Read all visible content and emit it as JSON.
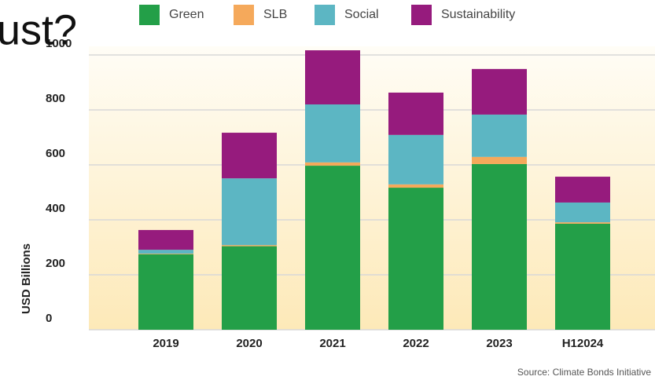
{
  "chart_data": {
    "type": "stacked_bar",
    "overlay_text": "ust?",
    "y_label": "USD Billions",
    "source": "Source: Climate Bonds Initiative",
    "categories": [
      "2019",
      "2020",
      "2021",
      "2022",
      "2023",
      "H12024"
    ],
    "series": [
      {
        "name": "Green",
        "color": "#239f48",
        "values": [
          275,
          304,
          597,
          517,
          603,
          386
        ]
      },
      {
        "name": "SLB",
        "color": "#f5a95b",
        "values": [
          2,
          4,
          12,
          12,
          26,
          5
        ]
      },
      {
        "name": "Social",
        "color": "#5cb6c3",
        "values": [
          14,
          243,
          211,
          180,
          154,
          72
        ]
      },
      {
        "name": "Sustainability",
        "color": "#961b7d",
        "values": [
          72,
          166,
          197,
          154,
          166,
          94
        ]
      }
    ],
    "ylim": [
      0,
      1030
    ],
    "yticks": [
      0,
      200,
      400,
      600,
      800,
      1000
    ],
    "grid": true
  }
}
